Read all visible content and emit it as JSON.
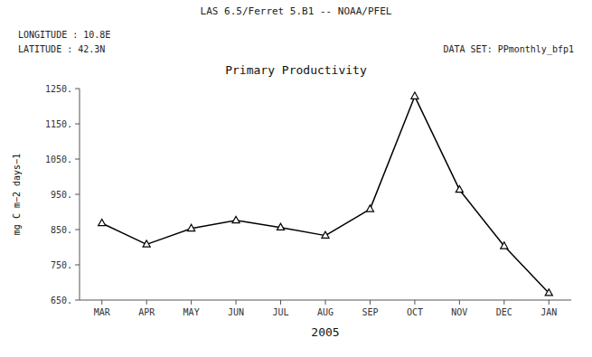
{
  "chart_data": {
    "type": "line",
    "title": "Primary Productivity",
    "annotations": [
      "LAS 6.5/Ferret  5.B1  --  NOAA/PFEL",
      "LONGITUDE : 10.8E",
      "LATITUDE : 42.3N",
      "DATA SET: PPmonthly_bfp1"
    ],
    "x_label": "2005",
    "y_label": "mg C m−2 days−1",
    "categories": [
      "MAR",
      "APR",
      "MAY",
      "JUN",
      "JUL",
      "AUG",
      "SEP",
      "OCT",
      "NOV",
      "DEC",
      "JAN"
    ],
    "values": [
      868,
      808,
      853,
      876,
      856,
      833,
      908,
      1228,
      963,
      803,
      670
    ],
    "color": "#000000",
    "marker": "triangle",
    "grid": false,
    "ylim": [
      650,
      1250
    ],
    "yticks": [
      {
        "value": 650,
        "label": "650."
      },
      {
        "value": 750,
        "label": "750."
      },
      {
        "value": 850,
        "label": "850."
      },
      {
        "value": 950,
        "label": "950."
      },
      {
        "value": 1050,
        "label": "1050."
      },
      {
        "value": 1150,
        "label": "1150."
      },
      {
        "value": 1250,
        "label": "1250."
      }
    ]
  }
}
